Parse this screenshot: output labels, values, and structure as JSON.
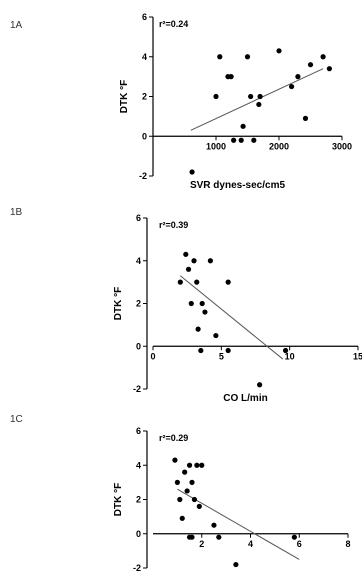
{
  "panels": [
    {
      "label": "1A"
    },
    {
      "label": "1B"
    },
    {
      "label": "1C"
    }
  ],
  "chart_data": [
    {
      "type": "scatter",
      "panel": "1A",
      "xlabel": "SVR dynes-sec/cm5",
      "ylabel": "DTK °F",
      "annotation": "r²=0.24",
      "xlim": [
        0,
        3000
      ],
      "ylim": [
        -2,
        6
      ],
      "xticks": [
        1000,
        2000,
        3000
      ],
      "yticks": [
        -2,
        0,
        2,
        4,
        6
      ],
      "grid": false,
      "x": [
        620,
        1000,
        1060,
        1190,
        1240,
        1280,
        1400,
        1430,
        1500,
        1550,
        1600,
        1680,
        1700,
        2000,
        2200,
        2300,
        2420,
        2500,
        2700,
        2800
      ],
      "y": [
        -1.8,
        2.0,
        4.0,
        3.0,
        3.0,
        -0.2,
        -0.2,
        0.5,
        4.0,
        2.0,
        -0.2,
        1.6,
        2.0,
        4.3,
        2.5,
        3.0,
        0.9,
        3.6,
        4.0,
        3.4
      ],
      "fit": {
        "x": [
          600,
          2700
        ],
        "y": [
          0.3,
          3.4
        ]
      }
    },
    {
      "type": "scatter",
      "panel": "1B",
      "xlabel": "CO L/min",
      "ylabel": "DTK °F",
      "annotation": "r²=0.39",
      "xlim": [
        0,
        15
      ],
      "ylim": [
        -2,
        6
      ],
      "xticks": [
        0,
        5,
        10,
        15
      ],
      "yticks": [
        -2,
        0,
        2,
        4,
        6
      ],
      "grid": false,
      "x": [
        2.0,
        2.4,
        2.6,
        2.8,
        3.0,
        3.2,
        3.3,
        3.5,
        3.6,
        3.8,
        4.2,
        4.6,
        5.5,
        5.5,
        7.8,
        9.7
      ],
      "y": [
        3.0,
        4.3,
        3.6,
        2.0,
        4.0,
        3.0,
        0.8,
        -0.2,
        2.0,
        1.6,
        4.0,
        0.5,
        3.0,
        -0.2,
        -1.8,
        -0.2
      ],
      "fit": {
        "x": [
          2.0,
          9.5
        ],
        "y": [
          3.3,
          -0.6
        ]
      }
    },
    {
      "type": "scatter",
      "panel": "1C",
      "xlabel": "",
      "ylabel": "DTK °F",
      "annotation": "r²=0.29",
      "xlim": [
        0,
        8
      ],
      "ylim": [
        -2,
        6
      ],
      "xticks": [
        2,
        4,
        6,
        8
      ],
      "yticks": [
        -2,
        0,
        2,
        4,
        6
      ],
      "grid": false,
      "x": [
        0.9,
        1.0,
        1.1,
        1.2,
        1.3,
        1.4,
        1.5,
        1.5,
        1.6,
        1.6,
        1.7,
        1.8,
        1.9,
        2.0,
        2.5,
        2.7,
        3.4,
        5.8
      ],
      "y": [
        4.3,
        3.0,
        2.0,
        0.9,
        3.6,
        2.5,
        4.0,
        -0.2,
        3.0,
        -0.2,
        2.0,
        4.0,
        1.6,
        4.0,
        0.5,
        -0.2,
        -1.8,
        -0.2
      ],
      "fit": {
        "x": [
          1.0,
          6.0
        ],
        "y": [
          2.6,
          -1.5
        ]
      }
    }
  ]
}
